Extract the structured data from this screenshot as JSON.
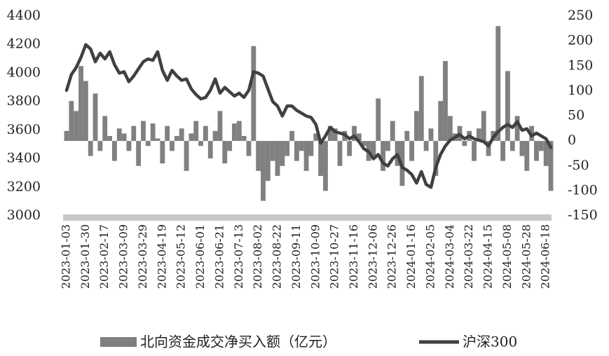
{
  "chart_data": {
    "type": "combo",
    "categories": [
      "2023-01-03",
      null,
      null,
      null,
      "2023-01-30",
      null,
      null,
      null,
      "2023-02-17",
      null,
      null,
      null,
      "2023-03-09",
      null,
      null,
      null,
      "2023-03-29",
      null,
      null,
      null,
      "2023-04-19",
      null,
      null,
      null,
      "2023-05-12",
      null,
      null,
      null,
      "2023-06-01",
      null,
      null,
      null,
      "2023-06-21",
      null,
      null,
      null,
      "2023-07-13",
      null,
      null,
      null,
      "2023-08-02",
      null,
      null,
      null,
      "2023-08-22",
      null,
      null,
      null,
      "2023-09-11",
      null,
      null,
      null,
      "2023-10-09",
      null,
      null,
      null,
      "2023-10-27",
      null,
      null,
      null,
      "2023-11-16",
      null,
      null,
      null,
      "2023-12-06",
      null,
      null,
      null,
      "2023-12-26",
      null,
      null,
      null,
      "2024-01-16",
      null,
      null,
      null,
      "2024-02-05",
      null,
      null,
      null,
      "2024-03-04",
      null,
      null,
      null,
      "2024-03-22",
      null,
      null,
      null,
      "2024-04-15",
      null,
      null,
      null,
      "2024-05-08",
      null,
      null,
      null,
      "2024-05-28",
      null,
      null,
      null,
      "2024-06-18",
      null
    ],
    "series": [
      {
        "name": "北向资金成交净买入额（亿元）",
        "type": "bar",
        "axis": "y2",
        "color": "#808080",
        "values": [
          20,
          80,
          60,
          150,
          120,
          -30,
          95,
          -20,
          50,
          10,
          -40,
          25,
          15,
          -20,
          30,
          -50,
          40,
          -10,
          35,
          5,
          -45,
          30,
          -20,
          10,
          25,
          -60,
          15,
          40,
          -10,
          30,
          -35,
          20,
          60,
          -45,
          -20,
          35,
          40,
          10,
          -30,
          190,
          -60,
          -120,
          -80,
          -40,
          -70,
          -50,
          -30,
          20,
          -40,
          -20,
          -60,
          -30,
          15,
          -70,
          -100,
          30,
          25,
          -50,
          20,
          -30,
          30,
          15,
          -10,
          -40,
          -30,
          85,
          -60,
          -20,
          40,
          -50,
          -90,
          20,
          -40,
          60,
          130,
          -20,
          25,
          -70,
          80,
          160,
          50,
          15,
          30,
          -10,
          20,
          -40,
          25,
          60,
          -30,
          20,
          230,
          -40,
          140,
          -20,
          50,
          -30,
          -60,
          30,
          -40,
          -20,
          -50,
          -100
        ]
      },
      {
        "name": "沪深300",
        "type": "line",
        "axis": "y",
        "color": "#404040",
        "values": [
          3880,
          3990,
          4040,
          4110,
          4200,
          4170,
          4080,
          4140,
          4100,
          4150,
          4060,
          4000,
          4010,
          3940,
          3980,
          4030,
          4080,
          4100,
          4090,
          4150,
          4020,
          3950,
          4020,
          3980,
          3950,
          3960,
          3890,
          3850,
          3820,
          3830,
          3880,
          3960,
          3860,
          3900,
          3870,
          3840,
          3860,
          3830,
          3880,
          4010,
          4000,
          3980,
          3890,
          3800,
          3770,
          3700,
          3770,
          3770,
          3740,
          3720,
          3700,
          3690,
          3640,
          3510,
          3560,
          3620,
          3590,
          3580,
          3570,
          3540,
          3560,
          3520,
          3470,
          3450,
          3400,
          3430,
          3370,
          3350,
          3400,
          3430,
          3340,
          3320,
          3290,
          3230,
          3310,
          3220,
          3200,
          3340,
          3430,
          3490,
          3530,
          3550,
          3570,
          3540,
          3560,
          3540,
          3530,
          3520,
          3490,
          3550,
          3590,
          3620,
          3640,
          3620,
          3660,
          3600,
          3610,
          3560,
          3580,
          3560,
          3540,
          3480
        ]
      }
    ],
    "ylim": [
      3000,
      4400
    ],
    "yticks": [
      3000,
      3200,
      3400,
      3600,
      3800,
      4000,
      4200,
      4400
    ],
    "y2lim": [
      -150,
      250
    ],
    "y2ticks": [
      -150,
      -100,
      -50,
      0,
      50,
      100,
      150,
      200,
      250
    ]
  }
}
